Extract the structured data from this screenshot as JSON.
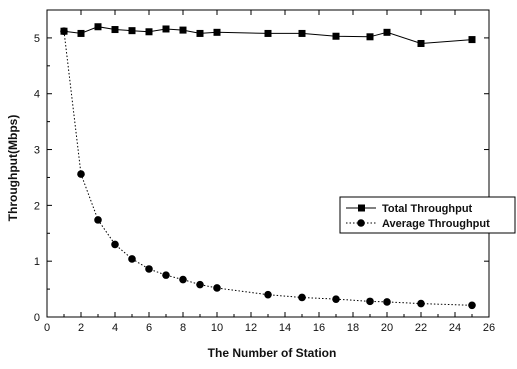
{
  "chart_data": {
    "type": "line",
    "xlabel": "The Number of Station",
    "ylabel": "Throughput(Mbps)",
    "xlim": [
      0,
      26
    ],
    "ylim": [
      0,
      5.5
    ],
    "xticks": [
      0,
      2,
      4,
      6,
      8,
      10,
      12,
      14,
      16,
      18,
      20,
      22,
      24,
      26
    ],
    "yticks": [
      0,
      1,
      2,
      3,
      4,
      5
    ],
    "grid": false,
    "legend_position": "right-middle",
    "series": [
      {
        "name": "Total Throughput",
        "marker": "square",
        "line_style": "solid",
        "x": [
          1,
          2,
          3,
          4,
          5,
          6,
          7,
          8,
          9,
          10,
          13,
          15,
          17,
          19,
          20,
          22,
          25
        ],
        "y": [
          5.12,
          5.08,
          5.2,
          5.15,
          5.13,
          5.11,
          5.16,
          5.14,
          5.08,
          5.1,
          5.08,
          5.08,
          5.03,
          5.02,
          5.1,
          4.9,
          4.97
        ]
      },
      {
        "name": "Average Throughput",
        "marker": "circle",
        "line_style": "dotted",
        "x": [
          1,
          2,
          3,
          4,
          5,
          6,
          7,
          8,
          9,
          10,
          13,
          15,
          17,
          19,
          20,
          22,
          25
        ],
        "y": [
          5.12,
          2.56,
          1.74,
          1.3,
          1.04,
          0.86,
          0.75,
          0.67,
          0.58,
          0.52,
          0.4,
          0.35,
          0.32,
          0.28,
          0.27,
          0.24,
          0.21
        ]
      }
    ]
  }
}
